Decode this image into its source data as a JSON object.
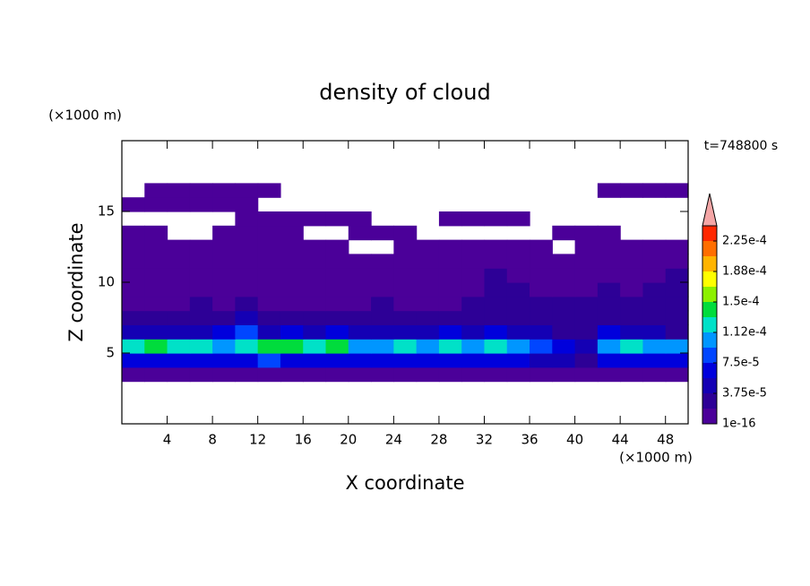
{
  "chart_data": {
    "type": "contour",
    "title": "density of cloud",
    "xlabel": "X coordinate",
    "ylabel": "Z coordinate",
    "x_unit": "(×1000 m)",
    "y_unit": "(×1000 m)",
    "annotation": "t=748800 s",
    "xlim": [
      0,
      50
    ],
    "ylim": [
      0,
      20
    ],
    "xticks": [
      4,
      8,
      12,
      16,
      20,
      24,
      28,
      32,
      36,
      40,
      44,
      48
    ],
    "yticks": [
      5,
      10,
      15
    ],
    "y": [
      3,
      4,
      5,
      6,
      7,
      8,
      9,
      10,
      11,
      12,
      13,
      14,
      15,
      16
    ],
    "z": [
      [
        5e-06,
        5e-06,
        5e-06,
        5e-06,
        5e-06,
        5e-06,
        5e-06,
        5e-06,
        5e-06,
        5e-06,
        5e-06,
        5e-06,
        5e-06,
        5e-06,
        5e-06,
        5e-06,
        5e-06,
        5e-06,
        5e-06,
        5e-06,
        5e-06,
        5e-06,
        5e-06,
        5e-06,
        5e-06
      ],
      [
        6e-05,
        7e-05,
        6e-05,
        7e-05,
        6e-05,
        7e-05,
        8e-05,
        7e-05,
        6e-05,
        7e-05,
        6e-05,
        6e-05,
        7e-05,
        6e-05,
        7e-05,
        6e-05,
        7e-05,
        6e-05,
        5e-05,
        4e-05,
        3e-05,
        6e-05,
        7e-05,
        6e-05,
        6e-05
      ],
      [
        0.00012,
        0.00014,
        0.00013,
        0.00012,
        0.00011,
        0.00013,
        0.00014,
        0.00015,
        0.00013,
        0.00014,
        0.0001,
        0.00011,
        0.00012,
        0.00011,
        0.00012,
        0.00011,
        0.00012,
        0.0001,
        8e-05,
        7e-05,
        5e-05,
        0.00011,
        0.00012,
        0.00011,
        0.0001
      ],
      [
        4e-05,
        4e-05,
        5e-05,
        4e-05,
        6e-05,
        9e-05,
        5e-05,
        6e-05,
        5e-05,
        6e-05,
        4e-05,
        5e-05,
        4e-05,
        5e-05,
        6e-05,
        5e-05,
        6e-05,
        4e-05,
        5e-05,
        3e-05,
        3e-05,
        6e-05,
        5e-05,
        4e-05,
        3e-05
      ],
      [
        2e-05,
        2e-05,
        2e-05,
        3e-05,
        2e-05,
        4e-05,
        2e-05,
        2e-05,
        2e-05,
        3e-05,
        2e-05,
        2e-05,
        2e-05,
        2e-05,
        3e-05,
        2e-05,
        3e-05,
        2e-05,
        2e-05,
        2e-05,
        3e-05,
        3e-05,
        2e-05,
        2e-05,
        2e-05
      ],
      [
        1e-05,
        1e-05,
        1e-05,
        2e-05,
        1e-05,
        2e-05,
        1e-05,
        1e-05,
        1e-05,
        1e-05,
        1e-05,
        2e-05,
        1e-05,
        1e-05,
        1e-05,
        2e-05,
        2e-05,
        3e-05,
        2e-05,
        2e-05,
        2e-05,
        3e-05,
        2e-05,
        3e-05,
        2e-05
      ],
      [
        1e-05,
        8e-06,
        1e-05,
        8e-06,
        1e-05,
        1e-05,
        1e-05,
        8e-06,
        1e-05,
        1e-05,
        8e-06,
        1e-05,
        1e-05,
        8e-06,
        1e-05,
        1e-05,
        2e-05,
        2e-05,
        1e-05,
        1e-05,
        1e-05,
        2e-05,
        1e-05,
        2e-05,
        2e-05
      ],
      [
        8e-06,
        8e-06,
        5e-06,
        8e-06,
        8e-06,
        5e-06,
        8e-06,
        8e-06,
        5e-06,
        8e-06,
        8e-06,
        5e-06,
        8e-06,
        8e-06,
        5e-06,
        8e-06,
        2e-05,
        8e-06,
        8e-06,
        5e-06,
        8e-06,
        8e-06,
        5e-06,
        8e-06,
        2e-05
      ],
      [
        5e-06,
        5e-06,
        5e-06,
        5e-06,
        5e-06,
        5e-06,
        5e-06,
        5e-06,
        5e-06,
        5e-06,
        5e-06,
        5e-06,
        5e-06,
        5e-06,
        5e-06,
        5e-06,
        5e-06,
        5e-06,
        5e-06,
        5e-06,
        5e-06,
        5e-06,
        5e-06,
        5e-06,
        5e-06
      ],
      [
        5e-06,
        5e-06,
        5e-06,
        5e-06,
        5e-06,
        5e-06,
        5e-06,
        5e-06,
        5e-06,
        5e-06,
        null,
        null,
        5e-06,
        5e-06,
        5e-06,
        5e-06,
        5e-06,
        5e-06,
        5e-06,
        null,
        5e-06,
        5e-06,
        5e-06,
        5e-06,
        5e-06
      ],
      [
        5e-06,
        5e-06,
        null,
        null,
        5e-06,
        5e-06,
        5e-06,
        5e-06,
        null,
        null,
        5e-06,
        5e-06,
        5e-06,
        null,
        null,
        null,
        null,
        null,
        null,
        5e-06,
        5e-06,
        5e-06,
        null,
        null,
        null
      ],
      [
        null,
        null,
        null,
        null,
        null,
        5e-06,
        5e-06,
        5e-06,
        5e-06,
        5e-06,
        5e-06,
        null,
        null,
        null,
        5e-06,
        5e-06,
        5e-06,
        5e-06,
        null,
        null,
        null,
        null,
        null,
        null,
        null
      ],
      [
        5e-06,
        5e-06,
        5e-06,
        5e-06,
        5e-06,
        5e-06,
        null,
        null,
        null,
        null,
        null,
        null,
        null,
        null,
        null,
        null,
        null,
        null,
        null,
        null,
        null,
        null,
        null,
        null,
        null
      ],
      [
        null,
        5e-06,
        5e-06,
        5e-06,
        5e-06,
        5e-06,
        5e-06,
        null,
        null,
        null,
        null,
        null,
        null,
        null,
        null,
        null,
        null,
        null,
        null,
        null,
        null,
        5e-06,
        5e-06,
        5e-06,
        5e-06
      ]
    ],
    "clim": [
      1e-16,
      0.00024375
    ],
    "colors": [
      "#4b0099",
      "#2d0096",
      "#1400b4",
      "#0000dc",
      "#0046ff",
      "#0096ff",
      "#00e1c8",
      "#00dc3c",
      "#8cf000",
      "#ffff00",
      "#ffb400",
      "#ff6e00",
      "#ff2800"
    ],
    "extend_color": "#f4a6a6",
    "cticks": [
      {
        "value": 1e-16,
        "label": "1e-16"
      },
      {
        "value": 3.75e-05,
        "label": "3.75e-5"
      },
      {
        "value": 7.5e-05,
        "label": "7.5e-5"
      },
      {
        "value": 0.0001125,
        "label": "1.12e-4"
      },
      {
        "value": 0.00015,
        "label": "1.5e-4"
      },
      {
        "value": 0.0001875,
        "label": "1.88e-4"
      },
      {
        "value": 0.000225,
        "label": "2.25e-4"
      }
    ]
  }
}
